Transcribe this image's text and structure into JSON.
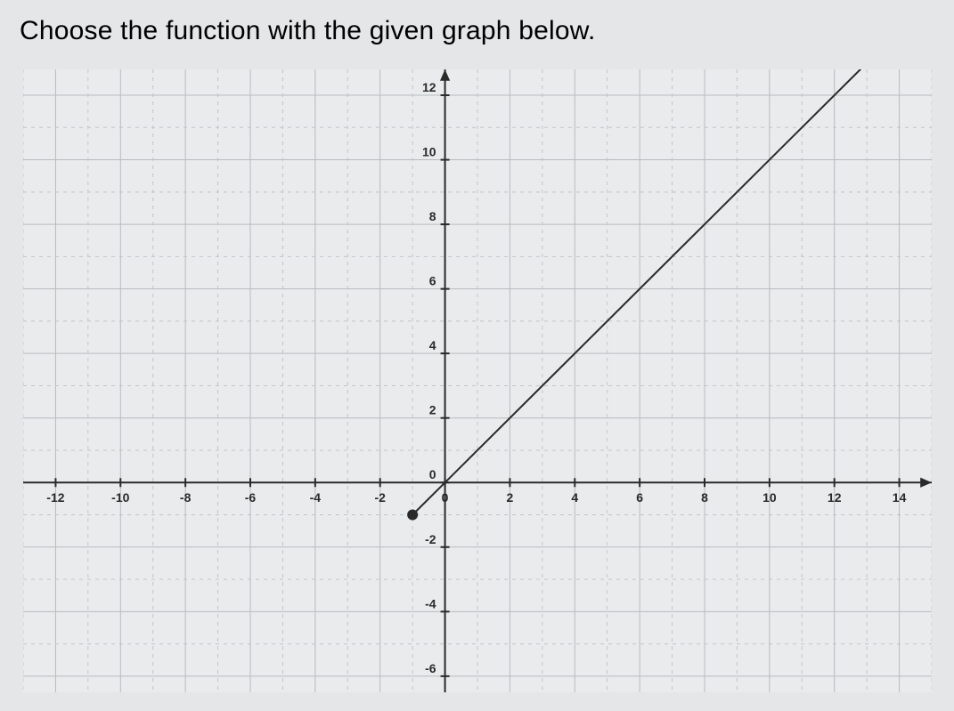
{
  "prompt_text": "Choose the function with the given graph below.",
  "chart": {
    "type": "line",
    "background_color": "#e9ebec",
    "page_background": "#e4e6e7",
    "grid": {
      "major_color": "#b8bcbf",
      "minor_color": "#c2c6c9",
      "axis_color": "#2a2a2a"
    },
    "text_color": "#2a2a2a",
    "x_axis": {
      "min": -13,
      "max": 15,
      "ticks": [
        -12,
        -10,
        -8,
        -6,
        -4,
        -2,
        0,
        2,
        4,
        6,
        8,
        10,
        12,
        14
      ],
      "label_fontsize": 14
    },
    "y_axis": {
      "min": -6.5,
      "max": 12.8,
      "ticks": [
        -6,
        -4,
        -2,
        0,
        2,
        4,
        6,
        8,
        10,
        12
      ],
      "label_fontsize": 14
    },
    "series": {
      "color": "#2a2a2a",
      "width": 2,
      "start": {
        "x": -1,
        "y": -1,
        "closed": true
      },
      "end": {
        "x": 13,
        "y": 13
      },
      "endpoint_marker": {
        "radius": 6,
        "fill": "#2a2a2a"
      }
    },
    "arrows": {
      "size": 8,
      "color": "#2a2a2a"
    }
  }
}
